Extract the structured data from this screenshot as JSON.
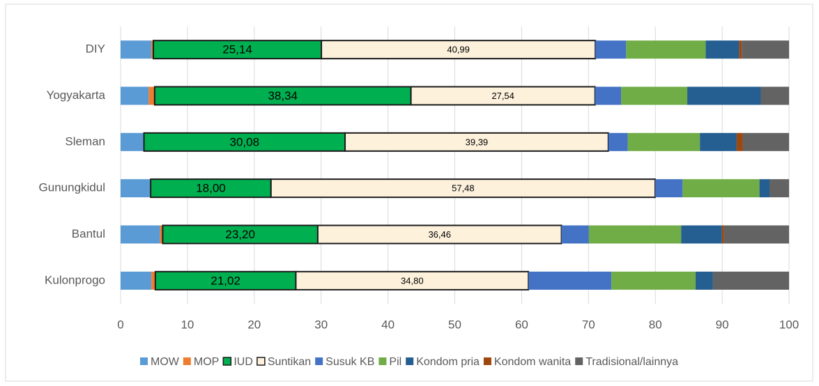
{
  "chart_data": {
    "type": "stacked-bar-horizontal",
    "categories": [
      "DIY",
      "Yogyakarta",
      "Sleman",
      "Gunungkidul",
      "Bantul",
      "Kulonprogo"
    ],
    "series": [
      {
        "name": "MOW",
        "color": "#5b9bd5",
        "values": [
          4.6,
          4.2,
          3.4,
          4.4,
          5.9,
          4.6
        ]
      },
      {
        "name": "MOP",
        "color": "#ed7d31",
        "values": [
          0.3,
          0.9,
          0.1,
          0.1,
          0.4,
          0.6
        ]
      },
      {
        "name": "IUD",
        "color": "#00b050",
        "values": [
          25.14,
          38.34,
          30.08,
          18.0,
          23.2,
          21.02
        ],
        "value_labels": [
          "25,14",
          "38,34",
          "30,08",
          "18,00",
          "23,20",
          "21,02"
        ]
      },
      {
        "name": "Suntikan",
        "color": "#fdf1dc",
        "values": [
          40.99,
          27.54,
          39.39,
          57.48,
          36.46,
          34.8
        ],
        "value_labels": [
          "40,99",
          "27,54",
          "39,39",
          "57,48",
          "36,46",
          "34,80"
        ]
      },
      {
        "name": "Susuk KB",
        "color": "#4472c4",
        "values": [
          4.6,
          3.9,
          2.9,
          4.1,
          4.1,
          12.4
        ]
      },
      {
        "name": "Pil",
        "color": "#70ad47",
        "values": [
          11.9,
          9.9,
          10.8,
          11.5,
          13.8,
          12.6
        ]
      },
      {
        "name": "Kondom pria",
        "color": "#255e91",
        "values": [
          5.0,
          11.0,
          5.5,
          1.5,
          6.1,
          2.6
        ]
      },
      {
        "name": "Kondom wanita",
        "color": "#9e480e",
        "values": [
          0.4,
          0,
          0.9,
          0,
          0.3,
          0
        ]
      },
      {
        "name": "Tradisional/lainnya",
        "color": "#636363",
        "values": [
          7.07,
          4.22,
          6.93,
          2.92,
          9.74,
          11.38
        ]
      }
    ],
    "xlim": [
      0,
      100
    ],
    "xticks": [
      0,
      10,
      20,
      30,
      40,
      50,
      60,
      70,
      80,
      90,
      100
    ],
    "grid": true,
    "legend": "bottom"
  }
}
